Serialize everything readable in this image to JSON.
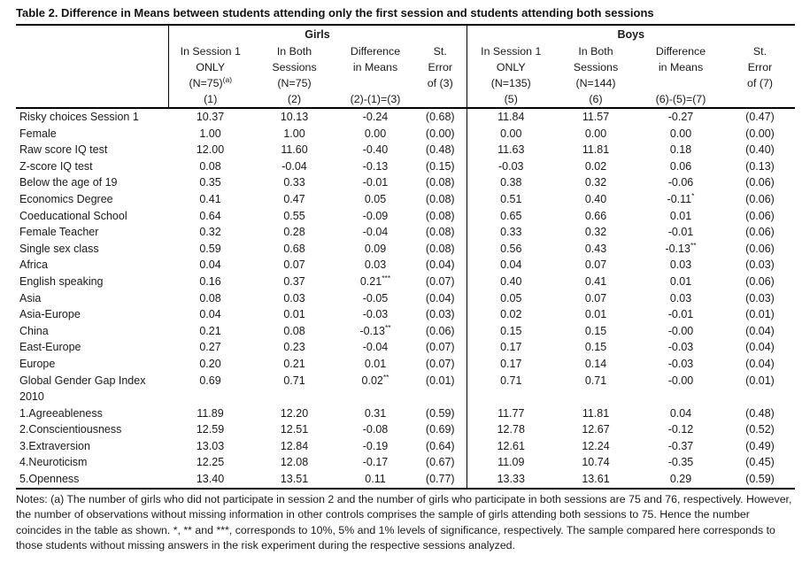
{
  "title": "Table 2. Difference in Means between students attending only the first session and students attending both sessions",
  "header": {
    "girls": "Girls",
    "boys": "Boys",
    "cols": [
      {
        "l1": "In Session 1",
        "l2": "ONLY",
        "l3": "(N=75)",
        "l3sup": "(a)",
        "l4": "(1)"
      },
      {
        "l1": "In Both",
        "l2": "Sessions",
        "l3": "(N=75)",
        "l3sup": "",
        "l4": "(2)"
      },
      {
        "l1": "Difference",
        "l2": "in Means",
        "l3": "",
        "l3sup": "",
        "l4": "(2)-(1)=(3)"
      },
      {
        "l1": "St.",
        "l2": "Error",
        "l3": "of (3)",
        "l3sup": "",
        "l4": ""
      },
      {
        "l1": "In Session 1",
        "l2": "ONLY",
        "l3": "(N=135)",
        "l3sup": "",
        "l4": "(5)"
      },
      {
        "l1": "In Both",
        "l2": "Sessions",
        "l3": "(N=144)",
        "l3sup": "",
        "l4": "(6)"
      },
      {
        "l1": "Difference",
        "l2": "in Means",
        "l3": "",
        "l3sup": "",
        "l4": "(6)-(5)=(7)"
      },
      {
        "l1": "St.",
        "l2": "Error",
        "l3": "of (7)",
        "l3sup": "",
        "l4": ""
      }
    ]
  },
  "rows": [
    {
      "label": "Risky choices Session 1",
      "c": [
        "10.37",
        "10.13",
        "-0.24",
        "(0.68)",
        "11.84",
        "11.57",
        "-0.27",
        "(0.47)"
      ]
    },
    {
      "label": "Female",
      "c": [
        "1.00",
        "1.00",
        "0.00",
        "(0.00)",
        "0.00",
        "0.00",
        "0.00",
        "(0.00)"
      ]
    },
    {
      "label": "Raw score IQ test",
      "c": [
        "12.00",
        "11.60",
        "-0.40",
        "(0.48)",
        "11.63",
        "11.81",
        "0.18",
        "(0.40)"
      ]
    },
    {
      "label": "Z-score IQ test",
      "c": [
        "0.08",
        "-0.04",
        "-0.13",
        "(0.15)",
        "-0.03",
        "0.02",
        "0.06",
        "(0.13)"
      ]
    },
    {
      "label": "Below the age of 19",
      "c": [
        "0.35",
        "0.33",
        "-0.01",
        "(0.08)",
        "0.38",
        "0.32",
        "-0.06",
        "(0.06)"
      ]
    },
    {
      "label": "Economics Degree",
      "c": [
        "0.41",
        "0.47",
        "0.05",
        "(0.08)",
        "0.51",
        "0.40",
        "-0.11",
        "(0.06)"
      ],
      "s": {
        "6": "*"
      }
    },
    {
      "label": "Coeducational School",
      "c": [
        "0.64",
        "0.55",
        "-0.09",
        "(0.08)",
        "0.65",
        "0.66",
        "0.01",
        "(0.06)"
      ]
    },
    {
      "label": "Female Teacher",
      "c": [
        "0.32",
        "0.28",
        "-0.04",
        "(0.08)",
        "0.33",
        "0.32",
        "-0.01",
        "(0.06)"
      ]
    },
    {
      "label": "Single sex class",
      "c": [
        "0.59",
        "0.68",
        "0.09",
        "(0.08)",
        "0.56",
        "0.43",
        "-0.13",
        "(0.06)"
      ],
      "s": {
        "6": "**"
      }
    },
    {
      "label": "Africa",
      "c": [
        "0.04",
        "0.07",
        "0.03",
        "(0.04)",
        "0.04",
        "0.07",
        "0.03",
        "(0.03)"
      ]
    },
    {
      "label": "English speaking",
      "c": [
        "0.16",
        "0.37",
        "0.21",
        "(0.07)",
        "0.40",
        "0.41",
        "0.01",
        "(0.06)"
      ],
      "s": {
        "2": "***"
      }
    },
    {
      "label": "Asia",
      "c": [
        "0.08",
        "0.03",
        "-0.05",
        "(0.04)",
        "0.05",
        "0.07",
        "0.03",
        "(0.03)"
      ]
    },
    {
      "label": "Asia-Europe",
      "c": [
        "0.04",
        "0.01",
        "-0.03",
        "(0.03)",
        "0.02",
        "0.01",
        "-0.01",
        "(0.01)"
      ]
    },
    {
      "label": "China",
      "c": [
        "0.21",
        "0.08",
        "-0.13",
        "(0.06)",
        "0.15",
        "0.15",
        "-0.00",
        "(0.04)"
      ],
      "s": {
        "2": "**"
      }
    },
    {
      "label": "East-Europe",
      "c": [
        "0.27",
        "0.23",
        "-0.04",
        "(0.07)",
        "0.17",
        "0.15",
        "-0.03",
        "(0.04)"
      ]
    },
    {
      "label": "Europe",
      "c": [
        "0.20",
        "0.21",
        "0.01",
        "(0.07)",
        "0.17",
        "0.14",
        "-0.03",
        "(0.04)"
      ]
    },
    {
      "label": "Global Gender Gap Index",
      "label2": "2010",
      "c": [
        "0.69",
        "0.71",
        "0.02",
        "(0.01)",
        "0.71",
        "0.71",
        "-0.00",
        "(0.01)"
      ],
      "s": {
        "2": "**"
      }
    },
    {
      "label": "1.Agreeableness",
      "c": [
        "11.89",
        "12.20",
        "0.31",
        "(0.59)",
        "11.77",
        "11.81",
        "0.04",
        "(0.48)"
      ]
    },
    {
      "label": "2.Conscientiousness",
      "c": [
        "12.59",
        "12.51",
        "-0.08",
        "(0.69)",
        "12.78",
        "12.67",
        "-0.12",
        "(0.52)"
      ]
    },
    {
      "label": "3.Extraversion",
      "c": [
        "13.03",
        "12.84",
        "-0.19",
        "(0.64)",
        "12.61",
        "12.24",
        "-0.37",
        "(0.49)"
      ]
    },
    {
      "label": "4.Neuroticism",
      "c": [
        "12.25",
        "12.08",
        "-0.17",
        "(0.67)",
        "11.09",
        "10.74",
        "-0.35",
        "(0.45)"
      ]
    },
    {
      "label": "5.Openness",
      "c": [
        "13.40",
        "13.51",
        "0.11",
        "(0.77)",
        "13.33",
        "13.61",
        "0.29",
        "(0.59)"
      ]
    }
  ],
  "notes": "Notes: (a) The number of girls who did not participate in session 2 and the number of girls who participate in both sessions are 75 and 76, respectively. However, the number of observations without missing information in other controls comprises the sample of girls attending both sessions to 75. Hence the number coincides in the table as shown. *, ** and ***, corresponds to 10%, 5% and 1% levels of significance, respectively. The sample compared here corresponds to those students without missing answers in the risk experiment during the respective sessions analyzed."
}
